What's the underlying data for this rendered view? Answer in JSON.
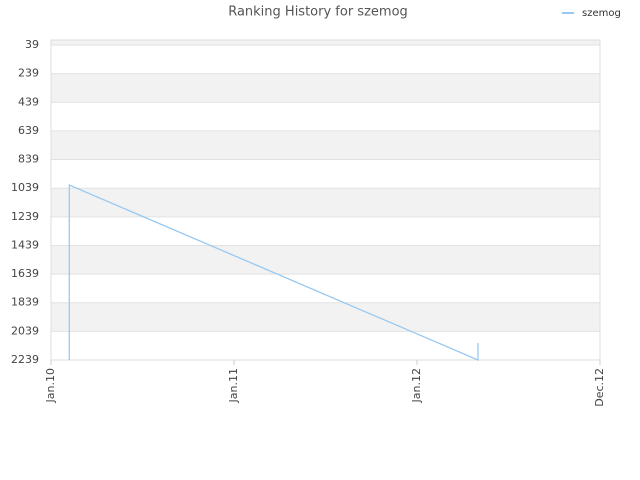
{
  "chart_data": {
    "type": "line",
    "title": "Ranking History for szemog",
    "series": [
      {
        "name": "szemog",
        "color": "#99c9f0",
        "x": [
          1.2,
          1.2,
          28,
          28
        ],
        "values": [
          2239,
          1017,
          2239,
          2120
        ]
      }
    ],
    "xlim": [
      0,
      36
    ],
    "xticks": [
      {
        "value": 0,
        "label": "Jan.10"
      },
      {
        "value": 12,
        "label": "Jan.11"
      },
      {
        "value": 24,
        "label": "Jan.12"
      },
      {
        "value": 36,
        "label": "Dec.12"
      }
    ],
    "ylim": [
      4,
      2239
    ],
    "y_reversed": true,
    "yticks": [
      39,
      239,
      439,
      639,
      839,
      1039,
      1239,
      1439,
      1639,
      1839,
      2039,
      2239
    ],
    "grid": true,
    "legend": "top-right"
  }
}
